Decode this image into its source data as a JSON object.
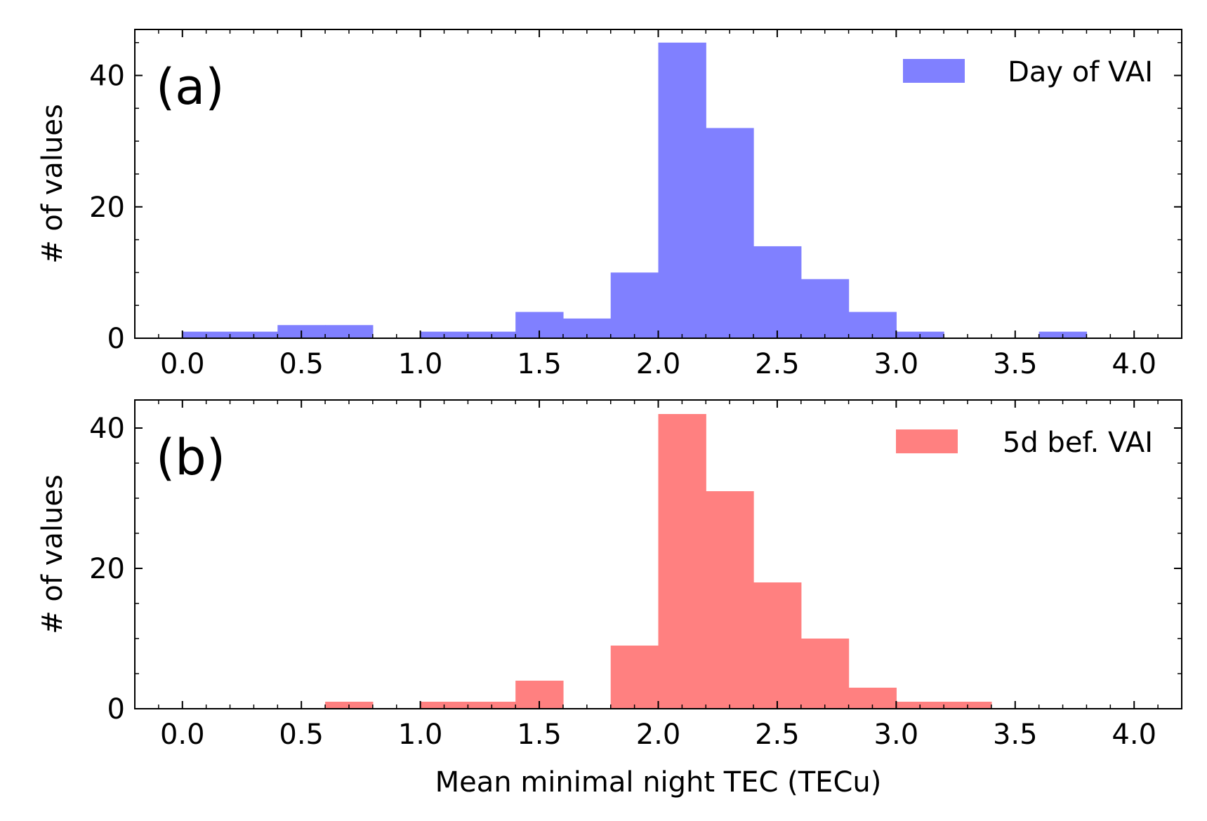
{
  "chart_data": [
    {
      "type": "bar",
      "panel_label": "(a)",
      "bin_edges": [
        0.0,
        0.2,
        0.4,
        0.6,
        0.8,
        1.0,
        1.2,
        1.4,
        1.6,
        1.8,
        2.0,
        2.2,
        2.4,
        2.6,
        2.8,
        3.0,
        3.2,
        3.4,
        3.6,
        3.8
      ],
      "values": [
        1,
        1,
        2,
        2,
        0,
        1,
        1,
        4,
        3,
        10,
        45,
        32,
        14,
        9,
        4,
        1,
        0,
        0,
        1
      ],
      "series_name": "Day of VAI",
      "color": "#8080ff",
      "ylabel": "# of values",
      "xlabel": "",
      "xlim": [
        -0.2,
        4.2
      ],
      "ylim": [
        0,
        47
      ],
      "xticks": [
        "0.0",
        "0.5",
        "1.0",
        "1.5",
        "2.0",
        "2.5",
        "3.0",
        "3.5",
        "4.0"
      ],
      "xtick_values": [
        0,
        0.5,
        1,
        1.5,
        2,
        2.5,
        3,
        3.5,
        4
      ],
      "yticks": [
        "0",
        "20",
        "40"
      ],
      "ytick_values": [
        0,
        20,
        40
      ],
      "legend_position": "top-right"
    },
    {
      "type": "bar",
      "panel_label": "(b)",
      "bin_edges": [
        0.0,
        0.2,
        0.4,
        0.6,
        0.8,
        1.0,
        1.2,
        1.4,
        1.6,
        1.8,
        2.0,
        2.2,
        2.4,
        2.6,
        2.8,
        3.0,
        3.2,
        3.4,
        3.6,
        3.8
      ],
      "values": [
        0,
        0,
        0,
        1,
        0,
        1,
        1,
        4,
        0,
        9,
        42,
        31,
        18,
        10,
        3,
        1,
        1,
        0,
        0
      ],
      "series_name": "5d bef. VAI",
      "color": "#ff8080",
      "ylabel": "# of values",
      "xlabel": "Mean minimal night TEC (TECu)",
      "xlim": [
        -0.2,
        4.2
      ],
      "ylim": [
        0,
        44
      ],
      "xticks": [
        "0.0",
        "0.5",
        "1.0",
        "1.5",
        "2.0",
        "2.5",
        "3.0",
        "3.5",
        "4.0"
      ],
      "xtick_values": [
        0,
        0.5,
        1,
        1.5,
        2,
        2.5,
        3,
        3.5,
        4
      ],
      "yticks": [
        "0",
        "20",
        "40"
      ],
      "ytick_values": [
        0,
        20,
        40
      ],
      "legend_position": "top-right"
    }
  ]
}
